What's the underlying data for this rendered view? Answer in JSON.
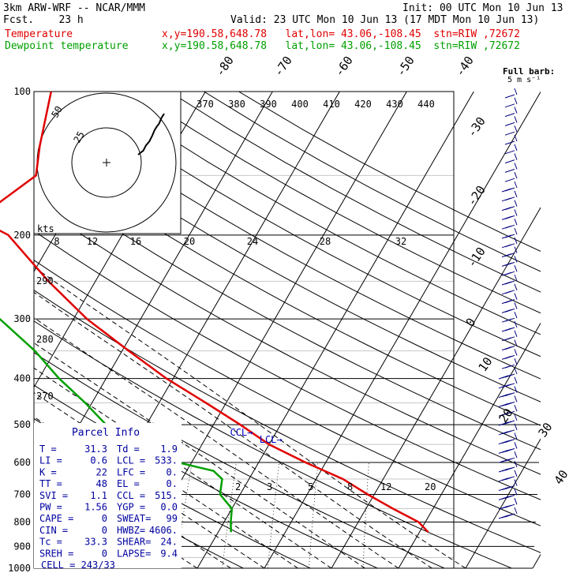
{
  "header": {
    "model": "3km ARW-WRF -- NCAR/MMM",
    "init": "Init: 00 UTC Mon 10 Jun 13",
    "fcst": "Fcst.    23 h",
    "valid": "Valid: 23 UTC Mon 10 Jun 13 (17 MDT Mon 10 Jun 13)",
    "lines": [
      {
        "name": "Temperature",
        "info": "x,y=190.58,648.78   lat,lon= 43.06,-108.45  stn=RIW ,72672",
        "color": "#e00000"
      },
      {
        "name": "Dewpoint temperature",
        "info": "x,y=190.58,648.78   lat,lon= 43.06,-108.45  stn=RIW ,72672",
        "color": "#00a000"
      }
    ]
  },
  "chart_data": {
    "type": "line",
    "title": "",
    "pressure_levels": [
      "100",
      "200",
      "300",
      "400",
      "500",
      "600",
      "700",
      "800",
      "900",
      "1000"
    ],
    "isotherm_labels": [
      "-80",
      "-70",
      "-60",
      "-50",
      "-40",
      "-30",
      "-20",
      "-10",
      "0",
      "10",
      "20",
      "30",
      "40"
    ],
    "theta_labels": [
      "370",
      "380",
      "390",
      "400",
      "410",
      "420",
      "430",
      "440"
    ],
    "theta_lower_labels": [
      "290",
      "280",
      "270"
    ],
    "hodograph_speed_labels": [
      "8",
      "12",
      "16",
      "20",
      "24",
      "28",
      "32"
    ],
    "hodograph_ring_labels": [
      "25",
      "50"
    ],
    "mixing_ratio_labels": [
      "2",
      "3",
      "5",
      "8",
      "12",
      "20"
    ],
    "kts_label": "kts",
    "series": [
      {
        "name": "Temperature",
        "color": "#e00000",
        "points": [
          [
            100,
            -63
          ],
          [
            130,
            -60
          ],
          [
            150,
            -58
          ],
          [
            170,
            -61
          ],
          [
            185,
            -63
          ],
          [
            200,
            -57
          ],
          [
            250,
            -47
          ],
          [
            300,
            -38
          ],
          [
            350,
            -29
          ],
          [
            400,
            -21
          ],
          [
            450,
            -13
          ],
          [
            500,
            -6
          ],
          [
            550,
            0
          ],
          [
            600,
            7
          ],
          [
            650,
            14
          ],
          [
            700,
            19
          ],
          [
            750,
            24
          ],
          [
            800,
            29
          ],
          [
            840,
            31.3
          ]
        ]
      },
      {
        "name": "Dewpoint temperature",
        "color": "#00a000",
        "points": [
          [
            100,
            -74
          ],
          [
            120,
            -76
          ],
          [
            140,
            -80
          ],
          [
            160,
            -83
          ],
          [
            180,
            -79
          ],
          [
            200,
            -69
          ],
          [
            250,
            -60
          ],
          [
            300,
            -51
          ],
          [
            350,
            -43
          ],
          [
            400,
            -37
          ],
          [
            450,
            -31
          ],
          [
            500,
            -26
          ],
          [
            550,
            -21
          ],
          [
            600,
            -12
          ],
          [
            625,
            -6
          ],
          [
            650,
            -4
          ],
          [
            700,
            -3
          ],
          [
            750,
            0
          ],
          [
            800,
            1
          ],
          [
            840,
            1.9
          ]
        ]
      }
    ],
    "markers": [
      {
        "label": "CCL",
        "p": 515,
        "t": -3
      },
      {
        "label": "LCL",
        "p": 533,
        "t": 2
      }
    ],
    "wind_barb_label": "Full barb:",
    "wind_barb_sub": "5 m s⁻¹",
    "hodograph_trace": [
      [
        0,
        0
      ],
      [
        3,
        -2
      ],
      [
        6,
        -4
      ],
      [
        9,
        -9
      ],
      [
        13,
        -13
      ],
      [
        16,
        -18
      ],
      [
        19,
        -24
      ],
      [
        22,
        -28
      ],
      [
        24,
        -30
      ],
      [
        26,
        -34
      ],
      [
        27,
        -36
      ],
      [
        30,
        -40
      ]
    ]
  },
  "parcel_info": {
    "title": "Parcel Info",
    "rows": [
      [
        "T  =",
        "31.3",
        "Td =",
        "1.9"
      ],
      [
        "LI =",
        "0.6",
        "LCL =",
        "533."
      ],
      [
        "K  =",
        "22",
        "LFC =",
        "0."
      ],
      [
        "TT =",
        "48",
        "EL  =",
        "0."
      ],
      [
        "SVI =",
        "1.1",
        "CCL =",
        "515."
      ],
      [
        "PW =",
        "1.56",
        "YGP =",
        "0.0"
      ],
      [
        "CAPE =",
        "0",
        "SWEAT=",
        "99"
      ],
      [
        "CIN =",
        "0",
        "HWBZ=",
        "4606."
      ],
      [
        "Tc =",
        "33.3",
        "SHEAR=",
        "24."
      ],
      [
        "SREH =",
        "0",
        "LAPSE=",
        "9.4"
      ]
    ],
    "cell": "CELL = 243/33"
  }
}
